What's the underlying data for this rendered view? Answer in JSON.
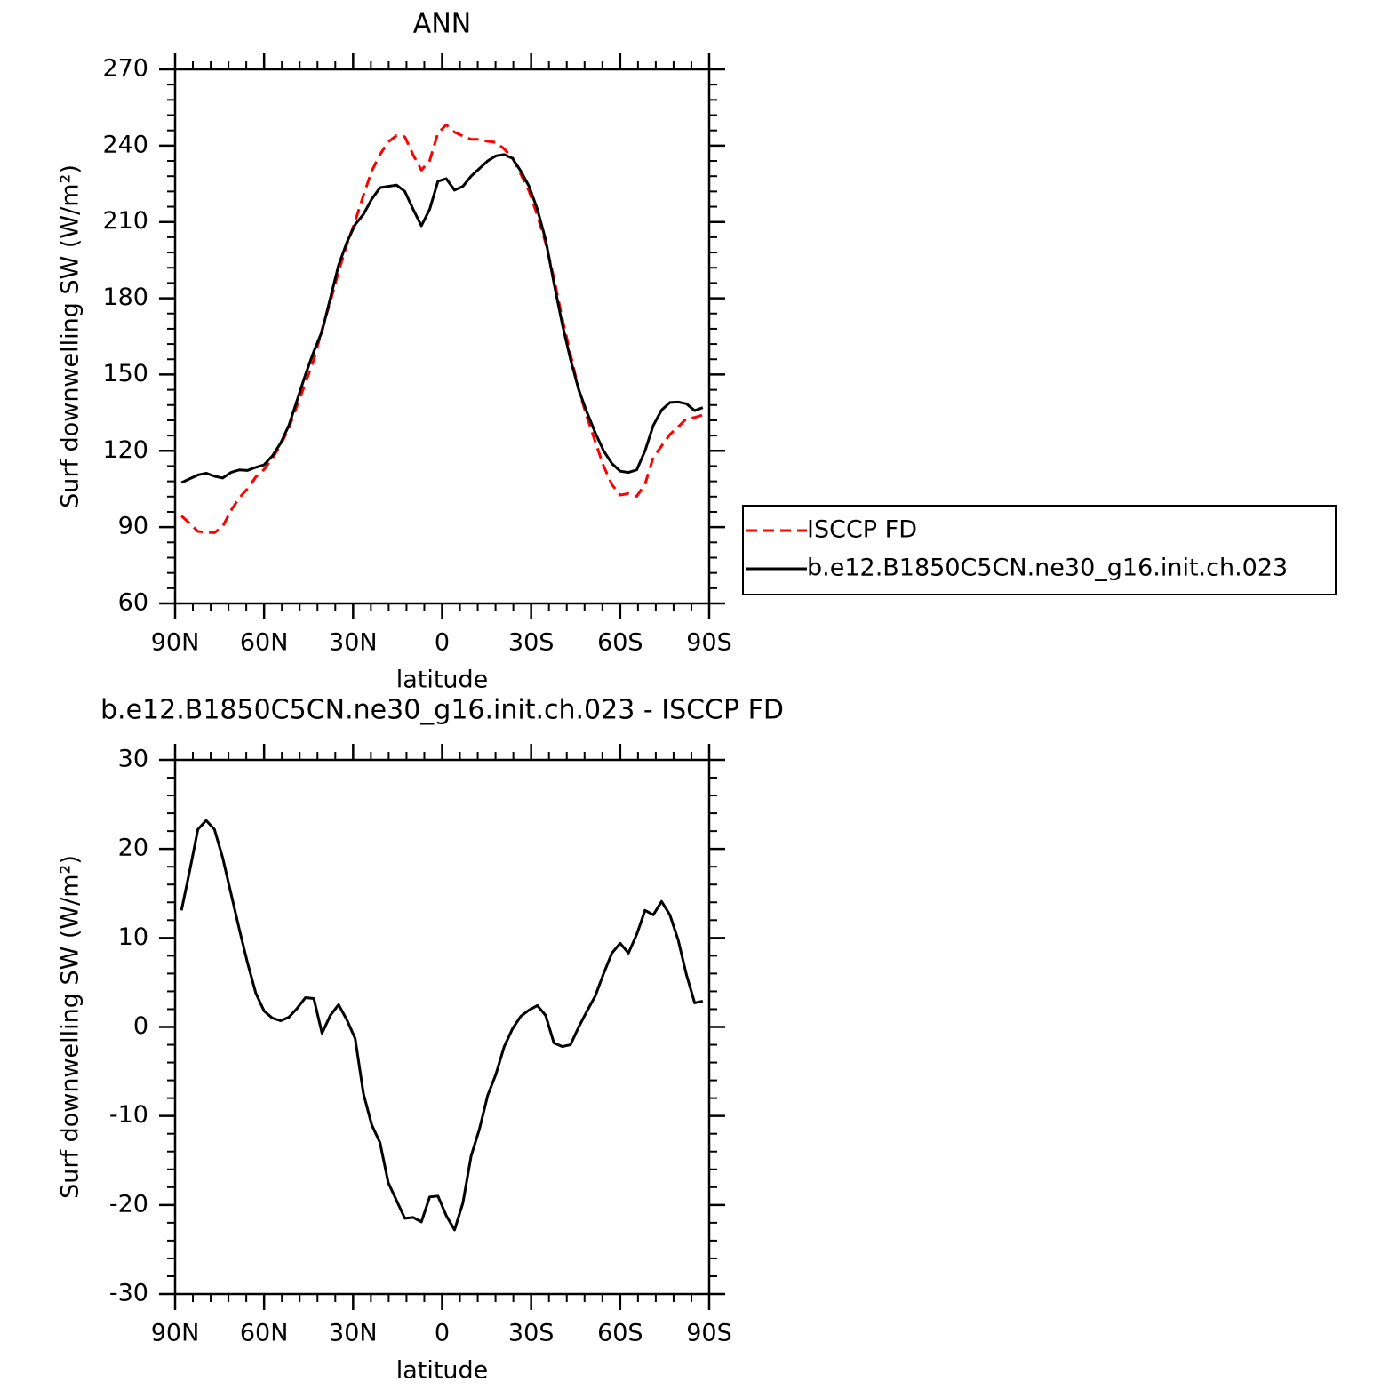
{
  "chart_data": [
    {
      "type": "line",
      "title": "ANN",
      "xlabel": "latitude",
      "ylabel": "Surf downwelling SW (W/m²)",
      "xlim": [
        90,
        -90
      ],
      "xticks": [
        {
          "value": 90,
          "label": "90N"
        },
        {
          "value": 60,
          "label": "60N"
        },
        {
          "value": 30,
          "label": "30N"
        },
        0,
        {
          "value": -30,
          "label": "30S"
        },
        {
          "value": -60,
          "label": "60S"
        },
        {
          "value": -90,
          "label": "90S"
        }
      ],
      "xminorticks": [
        84,
        78,
        72,
        66,
        54,
        48,
        42,
        36,
        24,
        18,
        12,
        6,
        -6,
        -12,
        -18,
        -24,
        -36,
        -42,
        -48,
        -54,
        -66,
        -72,
        -78,
        -84
      ],
      "ylim": [
        60,
        270
      ],
      "yticks": [
        60,
        90,
        120,
        150,
        180,
        210,
        240,
        270
      ],
      "yminorticks": [
        66,
        72,
        78,
        84,
        96,
        102,
        108,
        114,
        126,
        132,
        138,
        144,
        156,
        162,
        168,
        174,
        186,
        192,
        198,
        204,
        216,
        222,
        228,
        234,
        246,
        252,
        258,
        264
      ],
      "legend": "outside-right",
      "x": [
        87.86,
        85.1,
        82.31,
        79.53,
        76.74,
        73.95,
        71.16,
        68.37,
        65.58,
        62.79,
        60.0,
        57.21,
        54.42,
        51.63,
        48.84,
        46.04,
        43.25,
        40.46,
        37.67,
        34.88,
        32.09,
        29.3,
        26.51,
        23.72,
        20.93,
        18.14,
        15.35,
        12.56,
        9.77,
        6.98,
        4.19,
        1.4,
        -1.4,
        -4.19,
        -6.98,
        -9.77,
        -12.56,
        -15.35,
        -18.14,
        -20.93,
        -23.72,
        -26.51,
        -29.3,
        -32.09,
        -34.88,
        -37.67,
        -40.46,
        -43.25,
        -46.04,
        -48.84,
        -51.63,
        -54.42,
        -57.21,
        -60.0,
        -62.79,
        -65.58,
        -68.37,
        -71.16,
        -73.95,
        -76.74,
        -79.53,
        -82.31,
        -85.1,
        -87.86
      ],
      "series": [
        {
          "name": "ISCCP FD",
          "color": "#ff0000",
          "dash": "dashed",
          "values": [
            94.4,
            91.5,
            88.3,
            88.0,
            87.8,
            90.3,
            96.5,
            101.5,
            105.1,
            109.7,
            112.7,
            117,
            122.3,
            128.9,
            137.9,
            146.7,
            155.8,
            167.7,
            178.7,
            190.5,
            201.2,
            210.3,
            220.5,
            230,
            236.5,
            241.5,
            244,
            243.5,
            236.4,
            230.4,
            234.1,
            245,
            248.2,
            245.3,
            243.8,
            242.5,
            242.5,
            241.7,
            241.3,
            238.7,
            235.2,
            228.8,
            222.1,
            212.6,
            201.7,
            187.8,
            172.2,
            158,
            144,
            133.2,
            123.5,
            114,
            106.7,
            102.6,
            103.2,
            102.1,
            106.9,
            117.4,
            121.9,
            126.4,
            129.4,
            132.6,
            133.1,
            134.1
          ]
        },
        {
          "name": "b.e12.B1850C5CN.ne30_g16.init.ch.023",
          "color": "#000000",
          "dash": "solid",
          "values": [
            107.5,
            109,
            110.5,
            111.2,
            110,
            109.3,
            111.5,
            112.5,
            112.3,
            113.5,
            114.5,
            118,
            123,
            130,
            140,
            150,
            159,
            167,
            180,
            193,
            202,
            209,
            213,
            219,
            223.5,
            224,
            224.5,
            222,
            215,
            208.5,
            215,
            226,
            227,
            222.5,
            224,
            228,
            231,
            234,
            236,
            236.5,
            235,
            230,
            224,
            215,
            203,
            186,
            170,
            156,
            144,
            135,
            127,
            120,
            115,
            112,
            111.5,
            112.5,
            120,
            130,
            136,
            139,
            139.2,
            138.5,
            135.8,
            137
          ]
        }
      ]
    },
    {
      "type": "line",
      "title": "b.e12.B1850C5CN.ne30_g16.init.ch.023 - ISCCP FD",
      "xlabel": "latitude",
      "ylabel": "Surf downwelling SW (W/m²)",
      "xlim": [
        90,
        -90
      ],
      "xticks": [
        {
          "value": 90,
          "label": "90N"
        },
        {
          "value": 60,
          "label": "60N"
        },
        {
          "value": 30,
          "label": "30N"
        },
        0,
        {
          "value": -30,
          "label": "30S"
        },
        {
          "value": -60,
          "label": "60S"
        },
        {
          "value": -90,
          "label": "90S"
        }
      ],
      "xminorticks": [
        84,
        78,
        72,
        66,
        54,
        48,
        42,
        36,
        24,
        18,
        12,
        6,
        -6,
        -12,
        -18,
        -24,
        -36,
        -42,
        -48,
        -54,
        -66,
        -72,
        -78,
        -84
      ],
      "ylim": [
        -30,
        30
      ],
      "yticks": [
        -30,
        -20,
        -10,
        0,
        10,
        20,
        30
      ],
      "yminorticks": [
        -28,
        -26,
        -24,
        -22,
        -18,
        -16,
        -14,
        -12,
        -8,
        -6,
        -4,
        -2,
        2,
        4,
        6,
        8,
        12,
        14,
        16,
        18,
        22,
        24,
        26,
        28
      ],
      "x": [
        87.86,
        85.1,
        82.31,
        79.53,
        76.74,
        73.95,
        71.16,
        68.37,
        65.58,
        62.79,
        60.0,
        57.21,
        54.42,
        51.63,
        48.84,
        46.04,
        43.25,
        40.46,
        37.67,
        34.88,
        32.09,
        29.3,
        26.51,
        23.72,
        20.93,
        18.14,
        15.35,
        12.56,
        9.77,
        6.98,
        4.19,
        1.4,
        -1.4,
        -4.19,
        -6.98,
        -9.77,
        -12.56,
        -15.35,
        -18.14,
        -20.93,
        -23.72,
        -26.51,
        -29.3,
        -32.09,
        -34.88,
        -37.67,
        -40.46,
        -43.25,
        -46.04,
        -48.84,
        -51.63,
        -54.42,
        -57.21,
        -60.0,
        -62.79,
        -65.58,
        -68.37,
        -71.16,
        -73.95,
        -76.74,
        -79.53,
        -82.31,
        -85.1,
        -87.86
      ],
      "color": "#000000",
      "values": [
        13.1,
        17.5,
        22.2,
        23.2,
        22.2,
        19,
        15,
        11,
        7.2,
        3.8,
        1.8,
        1.0,
        0.7,
        1.1,
        2.1,
        3.3,
        3.2,
        -0.7,
        1.3,
        2.5,
        0.8,
        -1.3,
        -7.5,
        -11,
        -13,
        -17.5,
        -19.5,
        -21.5,
        -21.4,
        -21.9,
        -19.1,
        -19,
        -21.2,
        -22.8,
        -19.8,
        -14.5,
        -11.5,
        -7.7,
        -5.3,
        -2.2,
        -0.2,
        1.2,
        1.9,
        2.4,
        1.3,
        -1.8,
        -2.2,
        -2.0,
        0,
        1.8,
        3.5,
        6.0,
        8.3,
        9.4,
        8.3,
        10.4,
        13.1,
        12.6,
        14.1,
        12.6,
        9.8,
        5.9,
        2.7,
        2.9
      ]
    }
  ]
}
